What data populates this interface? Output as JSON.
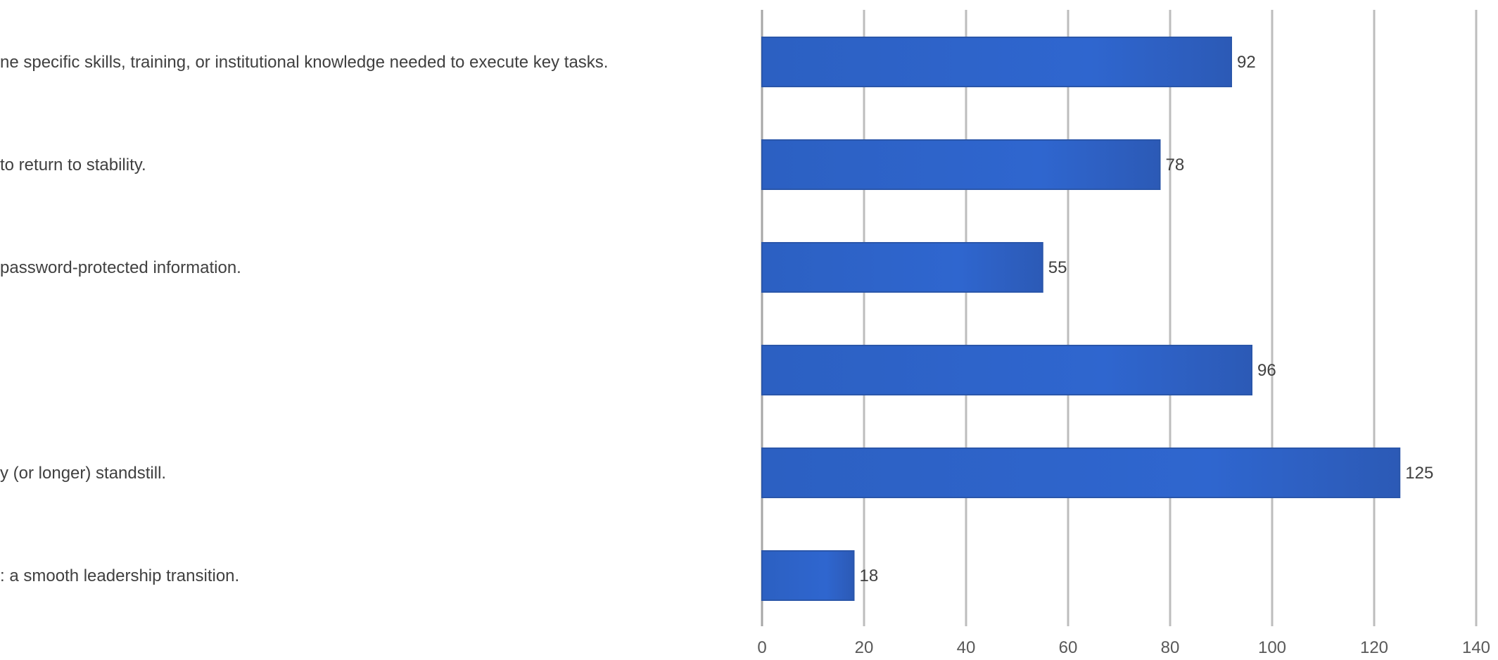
{
  "chart_data": {
    "type": "bar",
    "orientation": "horizontal",
    "categories": [
      "ne specific skills, training, or institutional knowledge needed to execute key tasks.",
      "to return to stability.",
      "password-protected information.",
      "",
      "y (or longer) standstill.",
      ": a smooth leadership transition."
    ],
    "values": [
      92,
      78,
      55,
      96,
      125,
      18
    ],
    "title": "",
    "xlabel": "",
    "ylabel": "",
    "xlim": [
      0,
      140
    ],
    "xticks": [
      0,
      20,
      40,
      60,
      80,
      100,
      120,
      140
    ],
    "grid": "vertical",
    "legend": "none",
    "colors": {
      "bar": "#2f66c9",
      "grid": "#bdbdbd",
      "text": "#404040"
    }
  }
}
